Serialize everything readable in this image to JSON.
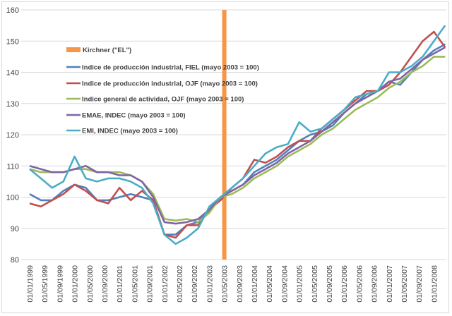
{
  "chart_data": {
    "type": "line",
    "title": "",
    "xlabel": "",
    "ylabel": "",
    "ylim": [
      80,
      160
    ],
    "yticks": [
      80,
      90,
      100,
      110,
      120,
      130,
      140,
      150,
      160
    ],
    "xlim": [
      "1999-01",
      "2008-04"
    ],
    "xtick_labels": [
      "01/01/1999",
      "01/05/1999",
      "01/09/1999",
      "01/01/2000",
      "01/05/2000",
      "01/09/2000",
      "01/01/2001",
      "01/05/2001",
      "01/09/2001",
      "01/01/2002",
      "01/05/2002",
      "01/09/2002",
      "01/01/2003",
      "01/05/2003",
      "01/09/2003",
      "01/01/2004",
      "01/05/2004",
      "01/09/2004",
      "01/01/2005",
      "01/05/2005",
      "01/09/2005",
      "01/01/2006",
      "01/05/2006",
      "01/09/2006",
      "01/01/2007",
      "01/05/2007",
      "01/09/2007",
      "01/01/2008"
    ],
    "grid": "horizontal",
    "legend_position": "top-left",
    "x": [
      "1999-01",
      "1999-04",
      "1999-07",
      "1999-10",
      "2000-01",
      "2000-04",
      "2000-07",
      "2000-10",
      "2001-01",
      "2001-04",
      "2001-07",
      "2001-10",
      "2002-01",
      "2002-04",
      "2002-07",
      "2002-10",
      "2003-01",
      "2003-04",
      "2003-07",
      "2003-10",
      "2004-01",
      "2004-04",
      "2004-07",
      "2004-10",
      "2005-01",
      "2005-04",
      "2005-07",
      "2005-10",
      "2006-01",
      "2006-04",
      "2006-07",
      "2006-10",
      "2007-01",
      "2007-04",
      "2007-07",
      "2007-10",
      "2008-01",
      "2008-04"
    ],
    "marker": {
      "name": "Kirchner (\"EL\")",
      "x": "2003-05",
      "color": "#f79646"
    },
    "series": [
      {
        "name": "Indice de producción industrial, FIEL (mayo 2003 = 100)",
        "color": "#4f81bd",
        "values": [
          101,
          99,
          99,
          102,
          104,
          103,
          99,
          99,
          100,
          101,
          100,
          99,
          88,
          88,
          91,
          92,
          96,
          100,
          102,
          104,
          108,
          110,
          112,
          115,
          118,
          120,
          121,
          123,
          127,
          130,
          133,
          134,
          137,
          136,
          140,
          144,
          147,
          149
        ]
      },
      {
        "name": "Indice de producción industrial, OJF (mayo 2003 = 100)",
        "color": "#c0504d",
        "values": [
          98,
          97,
          99,
          101,
          104,
          102,
          99,
          98,
          103,
          99,
          102,
          99,
          88,
          87,
          91,
          91,
          96,
          99,
          103,
          106,
          112,
          111,
          113,
          116,
          118,
          118,
          122,
          125,
          128,
          131,
          134,
          134,
          136,
          140,
          145,
          150,
          153,
          148
        ]
      },
      {
        "name": "Indice general de actividad, OJF (mayo 2003 = 100)",
        "color": "#9bbb59",
        "values": [
          109,
          108,
          108,
          108,
          109,
          109,
          108,
          108,
          108,
          107,
          105,
          101,
          93,
          92.5,
          93,
          92,
          95,
          100,
          101,
          103,
          106,
          108,
          110,
          113,
          115,
          117,
          120,
          122,
          125,
          128,
          130,
          132,
          135,
          137,
          140,
          142,
          145,
          145
        ]
      },
      {
        "name": "EMAE, INDEC (mayo 2003 = 100)",
        "color": "#8064a2",
        "values": [
          110,
          109,
          108,
          108,
          109,
          110,
          108,
          108,
          107,
          107,
          105,
          100,
          92,
          91.5,
          92,
          93,
          96,
          100,
          102,
          104,
          107,
          109,
          111,
          114,
          116,
          118,
          121,
          124,
          127,
          130,
          132,
          134,
          137,
          138,
          141,
          144,
          146,
          148
        ]
      },
      {
        "name": "EMI, INDEC (mayo 2003 = 100)",
        "color": "#4bacc6",
        "values": [
          109,
          106,
          103,
          105,
          113,
          106,
          105,
          106,
          106,
          105,
          103,
          98,
          88,
          85,
          87,
          90,
          97,
          100,
          103,
          106,
          110,
          114,
          116,
          117,
          124,
          121,
          122,
          125,
          128,
          132,
          133,
          134,
          140,
          140,
          142,
          145,
          150,
          155
        ]
      }
    ]
  }
}
